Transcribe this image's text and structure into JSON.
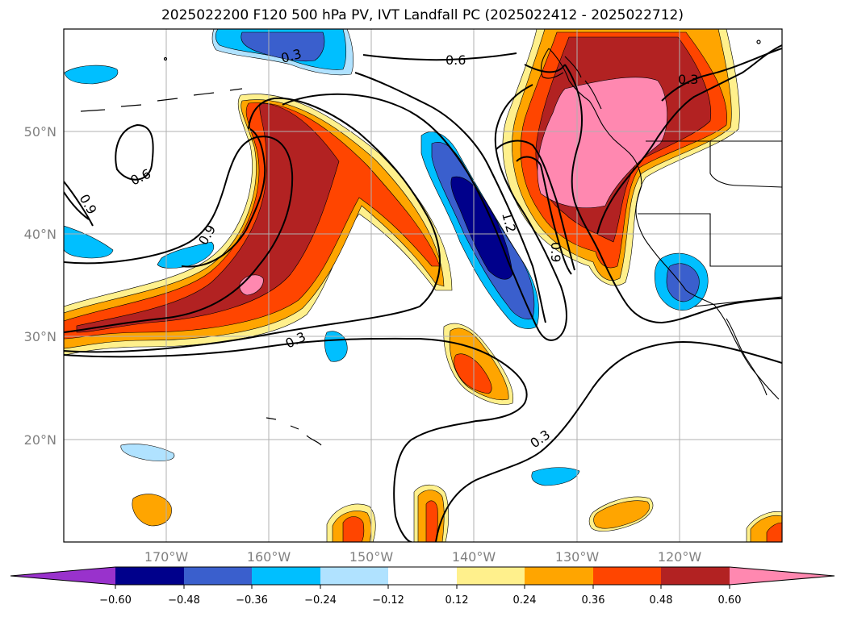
{
  "title": "2025022200 F120 500 hPa PV, IVT Landfall PC (2025022412 - 2025022712)",
  "lat_labels": [
    "50°N",
    "40°N",
    "30°N",
    "20°N"
  ],
  "lon_labels": [
    "170°W",
    "160°W",
    "150°W",
    "140°W",
    "130°W",
    "120°W"
  ],
  "contour_labels": [
    "0.6",
    "0.3",
    "0.6",
    "0.9",
    "0.9",
    "0.3",
    "1.2",
    "0.9",
    "0.3",
    "0.3"
  ],
  "colorbar": {
    "ticks": [
      "−0.60",
      "−0.48",
      "−0.36",
      "−0.24",
      "−0.12",
      "0.12",
      "0.24",
      "0.36",
      "0.48",
      "0.60"
    ],
    "under_color": "#9932cc",
    "over_color": "#ff88b0",
    "colors": [
      "#00008b",
      "#3a5fcd",
      "#00bfff",
      "#b0e2ff",
      "#ffffff",
      "#fff08c",
      "#ffa500",
      "#ff4500",
      "#b22222"
    ]
  },
  "shading_colors": {
    "neg_light": "#b0e2ff",
    "neg_mid": "#00bfff",
    "neg_strong": "#3a5fcd",
    "neg_max": "#00008b",
    "pos_light": "#fff08c",
    "pos_mid": "#ffa500",
    "pos_strong": "#ff4500",
    "pos_high": "#b22222",
    "pos_max": "#ff88b0"
  }
}
